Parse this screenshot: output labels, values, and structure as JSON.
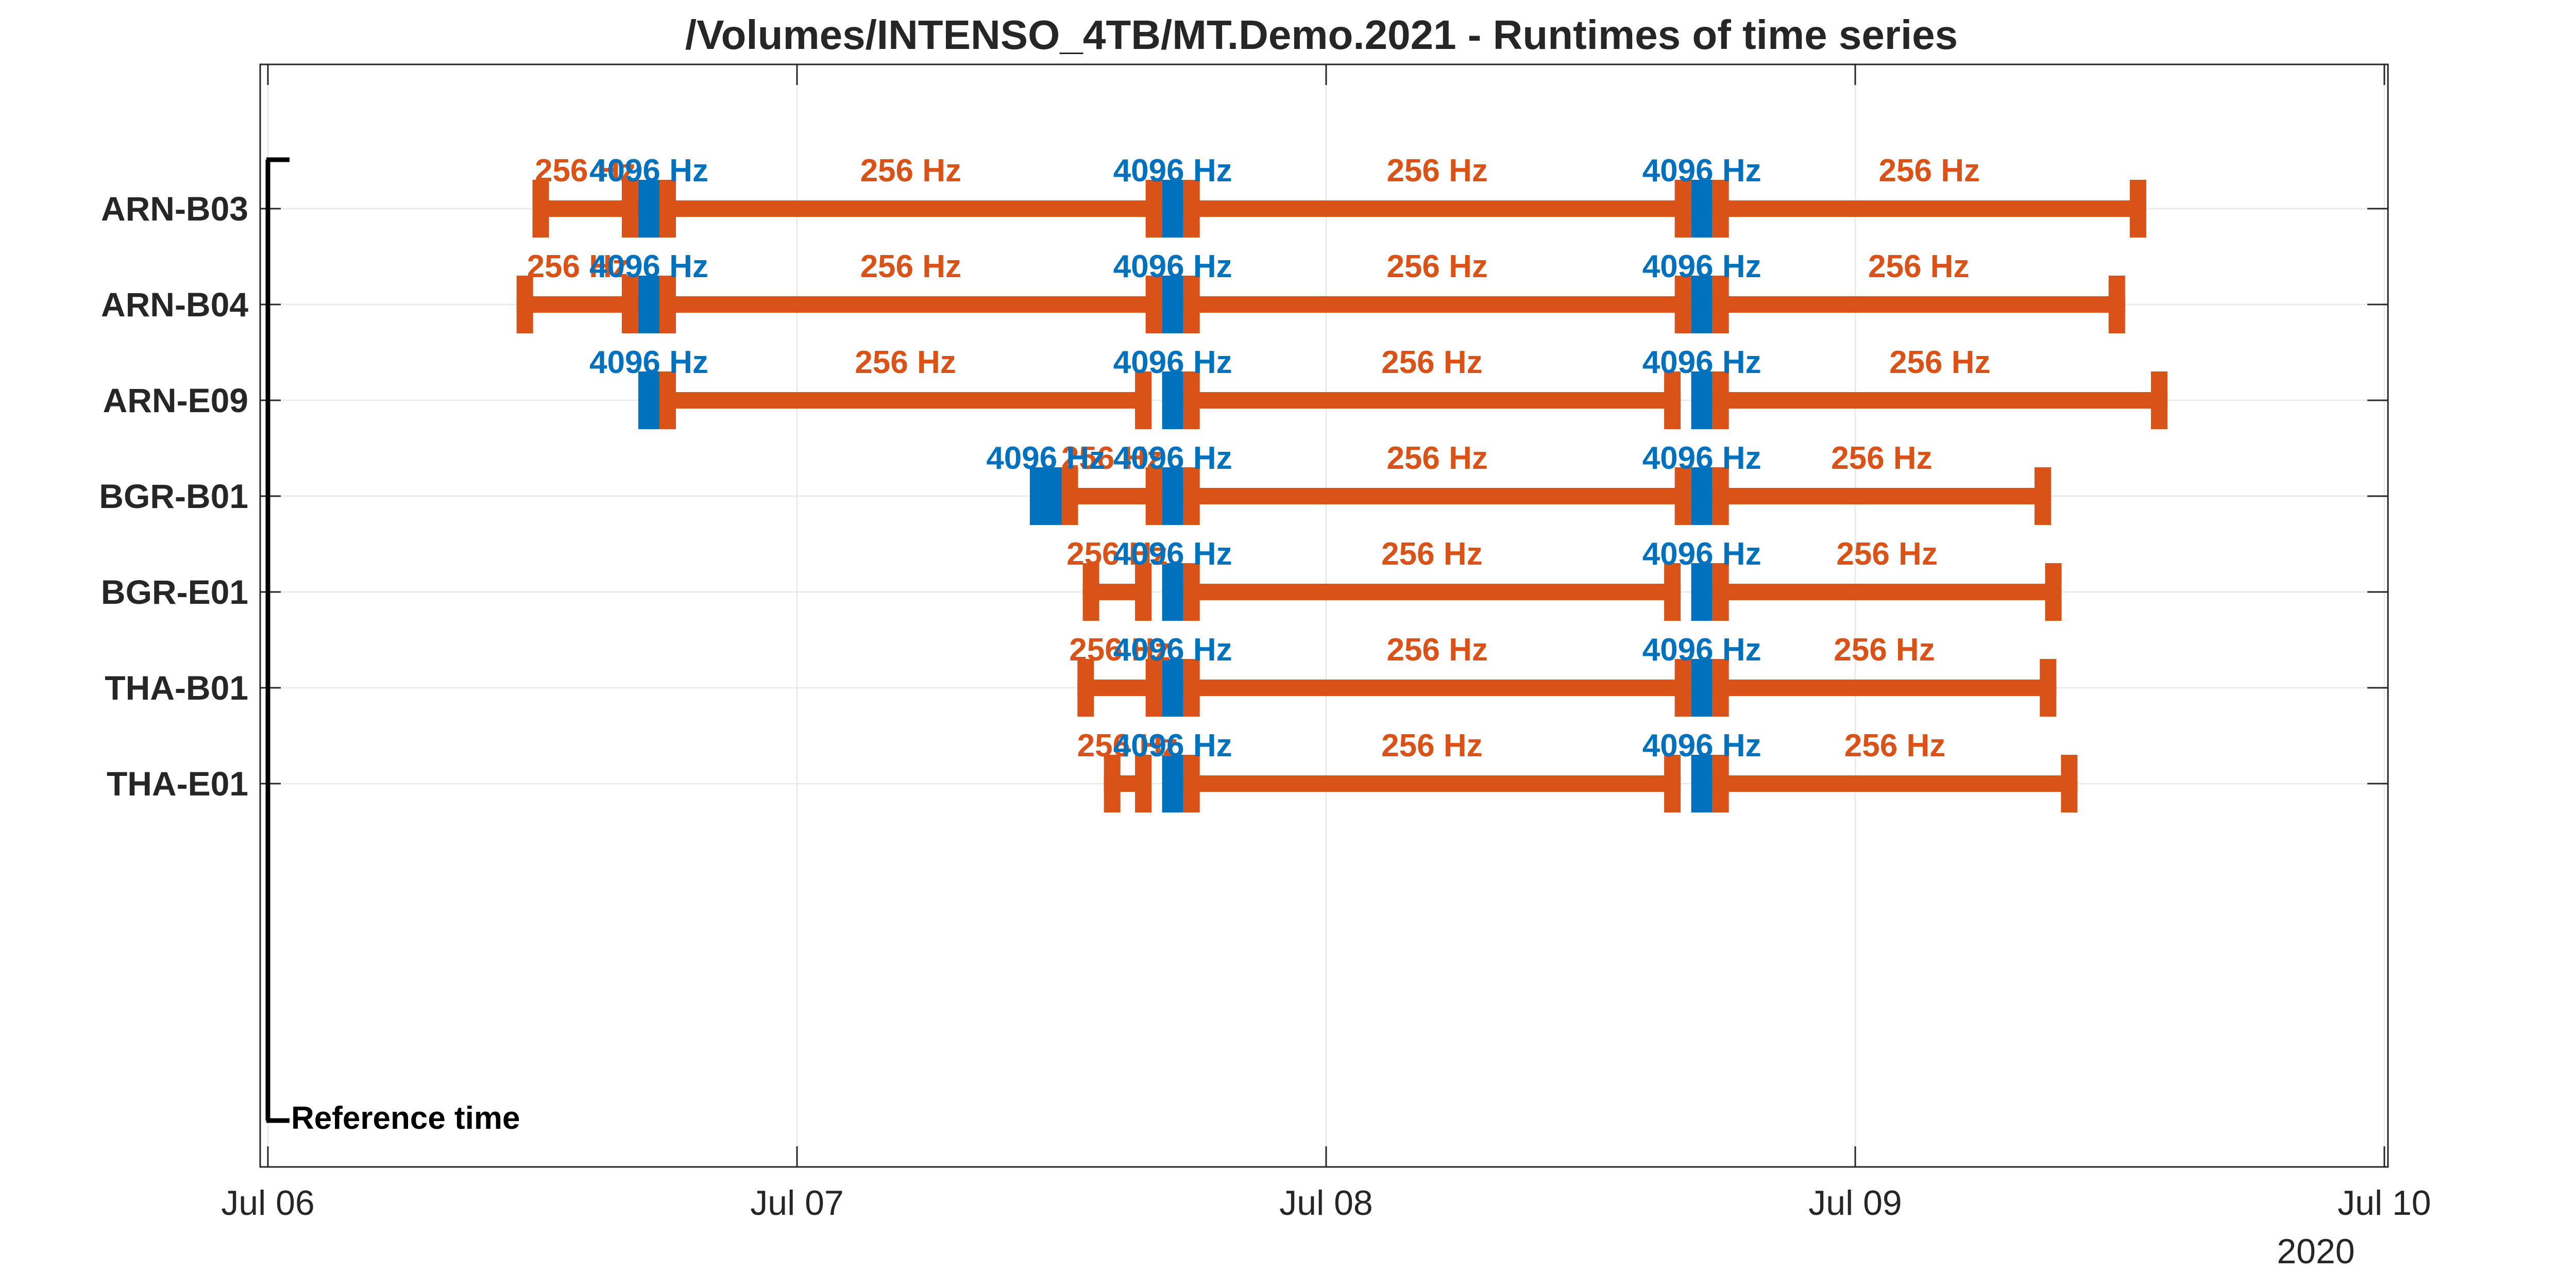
{
  "colors": {
    "rate_256": "#D95319",
    "rate_4096": "#0072BD",
    "axis": "#262626",
    "grid": "#EBEBEB",
    "reference": "#000000"
  },
  "chart_data": {
    "type": "gantt",
    "title": "/Volumes/INTENSO_4TB/MT.Demo.2021 - Runtimes of time series",
    "x_unit": "days since 2020-07-06 00:00",
    "xlim": [
      0,
      4
    ],
    "x_ticks": [
      {
        "value": 0,
        "label": "Jul 06"
      },
      {
        "value": 1,
        "label": "Jul 07"
      },
      {
        "value": 2,
        "label": "Jul 08"
      },
      {
        "value": 3,
        "label": "Jul 09"
      },
      {
        "value": 4,
        "label": "Jul 10"
      }
    ],
    "year_label": "2020",
    "grid": true,
    "reference": {
      "label": "Reference time",
      "x": 0
    },
    "stations": [
      {
        "name": "ARN-B03",
        "segments": [
          {
            "rate": "256 Hz",
            "start": 0.5,
            "end": 0.7
          },
          {
            "rate": "4096 Hz",
            "start": 0.7,
            "end": 0.74
          },
          {
            "rate": "256 Hz",
            "start": 0.74,
            "end": 1.69
          },
          {
            "rate": "4096 Hz",
            "start": 1.69,
            "end": 1.73
          },
          {
            "rate": "256 Hz",
            "start": 1.73,
            "end": 2.69
          },
          {
            "rate": "4096 Hz",
            "start": 2.69,
            "end": 2.73
          },
          {
            "rate": "256 Hz",
            "start": 2.73,
            "end": 3.55
          }
        ]
      },
      {
        "name": "ARN-B04",
        "segments": [
          {
            "rate": "256 Hz",
            "start": 0.47,
            "end": 0.7
          },
          {
            "rate": "4096 Hz",
            "start": 0.7,
            "end": 0.74
          },
          {
            "rate": "256 Hz",
            "start": 0.74,
            "end": 1.69
          },
          {
            "rate": "4096 Hz",
            "start": 1.69,
            "end": 1.73
          },
          {
            "rate": "256 Hz",
            "start": 1.73,
            "end": 2.69
          },
          {
            "rate": "4096 Hz",
            "start": 2.69,
            "end": 2.73
          },
          {
            "rate": "256 Hz",
            "start": 2.73,
            "end": 3.51
          }
        ]
      },
      {
        "name": "ARN-E09",
        "segments": [
          {
            "rate": "4096 Hz",
            "start": 0.7,
            "end": 0.74
          },
          {
            "rate": "256 Hz",
            "start": 0.74,
            "end": 1.67
          },
          {
            "rate": "4096 Hz",
            "start": 1.69,
            "end": 1.73
          },
          {
            "rate": "256 Hz",
            "start": 1.73,
            "end": 2.67
          },
          {
            "rate": "4096 Hz",
            "start": 2.69,
            "end": 2.73
          },
          {
            "rate": "256 Hz",
            "start": 2.73,
            "end": 3.59
          }
        ]
      },
      {
        "name": "BGR-B01",
        "segments": [
          {
            "rate": "4096 Hz",
            "start": 1.44,
            "end": 1.5
          },
          {
            "rate": "256 Hz",
            "start": 1.5,
            "end": 1.69
          },
          {
            "rate": "4096 Hz",
            "start": 1.69,
            "end": 1.73
          },
          {
            "rate": "256 Hz",
            "start": 1.73,
            "end": 2.69
          },
          {
            "rate": "4096 Hz",
            "start": 2.69,
            "end": 2.73
          },
          {
            "rate": "256 Hz",
            "start": 2.73,
            "end": 3.37
          }
        ]
      },
      {
        "name": "BGR-E01",
        "segments": [
          {
            "rate": "256 Hz",
            "start": 1.54,
            "end": 1.67
          },
          {
            "rate": "4096 Hz",
            "start": 1.69,
            "end": 1.73
          },
          {
            "rate": "256 Hz",
            "start": 1.73,
            "end": 2.67
          },
          {
            "rate": "4096 Hz",
            "start": 2.69,
            "end": 2.73
          },
          {
            "rate": "256 Hz",
            "start": 2.73,
            "end": 3.39
          }
        ]
      },
      {
        "name": "THA-B01",
        "segments": [
          {
            "rate": "256 Hz",
            "start": 1.53,
            "end": 1.69
          },
          {
            "rate": "4096 Hz",
            "start": 1.69,
            "end": 1.73
          },
          {
            "rate": "256 Hz",
            "start": 1.73,
            "end": 2.69
          },
          {
            "rate": "4096 Hz",
            "start": 2.69,
            "end": 2.73
          },
          {
            "rate": "256 Hz",
            "start": 2.73,
            "end": 3.38
          }
        ]
      },
      {
        "name": "THA-E01",
        "segments": [
          {
            "rate": "256 Hz",
            "start": 1.58,
            "end": 1.67
          },
          {
            "rate": "4096 Hz",
            "start": 1.69,
            "end": 1.73
          },
          {
            "rate": "256 Hz",
            "start": 1.73,
            "end": 2.67
          },
          {
            "rate": "4096 Hz",
            "start": 2.69,
            "end": 2.73
          },
          {
            "rate": "256 Hz",
            "start": 2.73,
            "end": 3.42
          }
        ]
      }
    ]
  }
}
